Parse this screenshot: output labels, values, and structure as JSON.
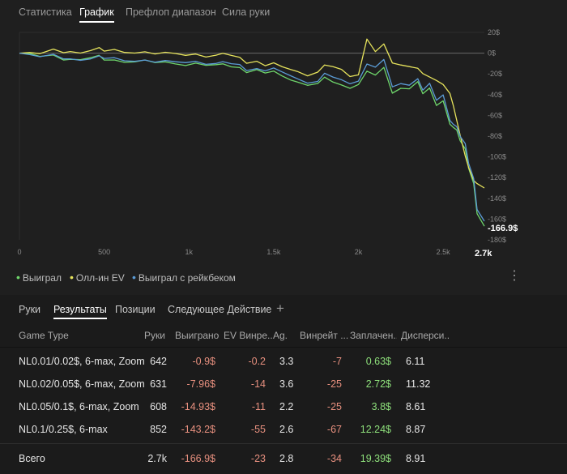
{
  "top_tabs": [
    "Статистика",
    "График",
    "Префлоп диапазон",
    "Сила руки"
  ],
  "chart_data": {
    "type": "line",
    "x_ticks": [
      "0",
      "500",
      "1k",
      "1.5k",
      "2k",
      "2.5k"
    ],
    "y_ticks": [
      "20$",
      "0$",
      "-20$",
      "-40$",
      "-60$",
      "-80$",
      "-100$",
      "-120$",
      "-140$",
      "-160$",
      "-180$"
    ],
    "xlim": [
      0,
      2743
    ],
    "ylim": [
      -180,
      20
    ],
    "final_x_label": "2.7k",
    "final_y_label": "-166.9$",
    "colors": {
      "won": "#6fd66b",
      "allin_ev": "#e6e35c",
      "rakeback": "#5b9bd5"
    },
    "series": [
      {
        "name": "Выиграл",
        "key": "won",
        "x": [
          0,
          60,
          120,
          200,
          260,
          300,
          360,
          420,
          470,
          500,
          560,
          620,
          680,
          740,
          800,
          860,
          920,
          980,
          1040,
          1100,
          1160,
          1200,
          1250,
          1300,
          1340,
          1400,
          1450,
          1500,
          1550,
          1600,
          1640,
          1700,
          1760,
          1800,
          1850,
          1900,
          1950,
          2000,
          2050,
          2100,
          2150,
          2200,
          2250,
          2300,
          2350,
          2380,
          2420,
          2460,
          2500,
          2540,
          2560,
          2580,
          2600,
          2630,
          2650,
          2680,
          2700,
          2743
        ],
        "y": [
          0,
          -1,
          -4,
          -2,
          -6,
          -5,
          -6,
          -5,
          -3,
          -7,
          -6,
          -8,
          -8,
          -7,
          -10,
          -9,
          -10,
          -11,
          -9,
          -12,
          -12,
          -11,
          -13,
          -13,
          -18,
          -16,
          -20,
          -18,
          -22,
          -25,
          -27,
          -31,
          -30,
          -24,
          -28,
          -30,
          -33,
          -30,
          -18,
          -22,
          -14,
          -38,
          -33,
          -34,
          -28,
          -40,
          -34,
          -50,
          -45,
          -68,
          -72,
          -75,
          -85,
          -92,
          -110,
          -125,
          -155,
          -166.9
        ]
      },
      {
        "name": "Олл-ин EV",
        "key": "allin_ev",
        "x": [
          0,
          60,
          120,
          200,
          260,
          300,
          360,
          420,
          470,
          500,
          560,
          620,
          680,
          740,
          800,
          860,
          920,
          980,
          1040,
          1100,
          1160,
          1200,
          1250,
          1300,
          1340,
          1400,
          1450,
          1500,
          1550,
          1600,
          1640,
          1700,
          1760,
          1800,
          1850,
          1900,
          1950,
          2000,
          2050,
          2100,
          2150,
          2200,
          2250,
          2300,
          2350,
          2380,
          2420,
          2460,
          2500,
          2540,
          2560,
          2580,
          2600,
          2630,
          2650,
          2680,
          2700,
          2743
        ],
        "y": [
          0,
          1,
          -1,
          3,
          0,
          2,
          1,
          3,
          5,
          1,
          3,
          1,
          1,
          2,
          -1,
          0,
          -1,
          -2,
          0,
          -3,
          -2,
          -1,
          -3,
          -4,
          -9,
          -7,
          -12,
          -10,
          -14,
          -16,
          -17,
          -21,
          -18,
          -12,
          -14,
          -16,
          -22,
          -20,
          14,
          1,
          8,
          -10,
          -11,
          -12,
          -14,
          -20,
          -24,
          -27,
          -30,
          -38,
          -50,
          -65,
          -80,
          -100,
          -110,
          -122,
          -125,
          -130
        ]
      },
      {
        "name": "Выиграл с рейкбеком",
        "key": "rakeback",
        "x": [
          0,
          60,
          120,
          200,
          260,
          300,
          360,
          420,
          470,
          500,
          560,
          620,
          680,
          740,
          800,
          860,
          920,
          980,
          1040,
          1100,
          1160,
          1200,
          1250,
          1300,
          1340,
          1400,
          1450,
          1500,
          1550,
          1600,
          1640,
          1700,
          1760,
          1800,
          1850,
          1900,
          1950,
          2000,
          2050,
          2100,
          2150,
          2200,
          2250,
          2300,
          2350,
          2380,
          2420,
          2460,
          2500,
          2540,
          2560,
          2580,
          2600,
          2630,
          2650,
          2680,
          2700,
          2743
        ],
        "y": [
          0,
          -1,
          -4,
          -2,
          -6,
          -5,
          -6,
          -5,
          -3,
          -6,
          -5,
          -7,
          -7,
          -6,
          -9,
          -8,
          -9,
          -9,
          -7,
          -10,
          -10,
          -9,
          -11,
          -11,
          -16,
          -14,
          -17,
          -15,
          -19,
          -22,
          -24,
          -28,
          -27,
          -20,
          -24,
          -26,
          -29,
          -26,
          -10,
          -14,
          -7,
          -33,
          -29,
          -30,
          -24,
          -36,
          -30,
          -46,
          -40,
          -64,
          -68,
          -71,
          -81,
          -88,
          -106,
          -120,
          -150,
          -162
        ]
      }
    ]
  },
  "legend": [
    {
      "label": "Выиграл",
      "color": "#6fd66b"
    },
    {
      "label": "Олл-ин EV",
      "color": "#e6e35c"
    },
    {
      "label": "Выиграл с рейкбеком",
      "color": "#5b9bd5"
    }
  ],
  "bottom_tabs": [
    "Руки",
    "Результаты",
    "Позиции",
    "Следующее Действие"
  ],
  "add_tab_label": "+",
  "menu_glyph": "⋮",
  "table": {
    "headers": [
      "Game Type",
      "Руки",
      "Выиграно",
      "EV Винре...",
      "Ag.",
      "Винрейт ...",
      "Заплачен...",
      "Дисперси..."
    ],
    "rows": [
      [
        "NL0.01/0.02$, 6-max, Zoom",
        "642",
        "-0.9$",
        "-0.2",
        "3.3",
        "-7",
        "0.63$",
        "6.11"
      ],
      [
        "NL0.02/0.05$, 6-max, Zoom",
        "631",
        "-7.96$",
        "-14",
        "3.6",
        "-25",
        "2.72$",
        "11.32"
      ],
      [
        "NL0.05/0.1$, 6-max, Zoom",
        "608",
        "-14.93$",
        "-11",
        "2.2",
        "-25",
        "3.8$",
        "8.61"
      ],
      [
        "NL0.1/0.25$, 6-max",
        "852",
        "-143.2$",
        "-55",
        "2.6",
        "-67",
        "12.24$",
        "8.87"
      ]
    ],
    "total": [
      "Всего",
      "2.7k",
      "-166.9$",
      "-23",
      "2.8",
      "-34",
      "19.39$",
      "8.91"
    ]
  }
}
